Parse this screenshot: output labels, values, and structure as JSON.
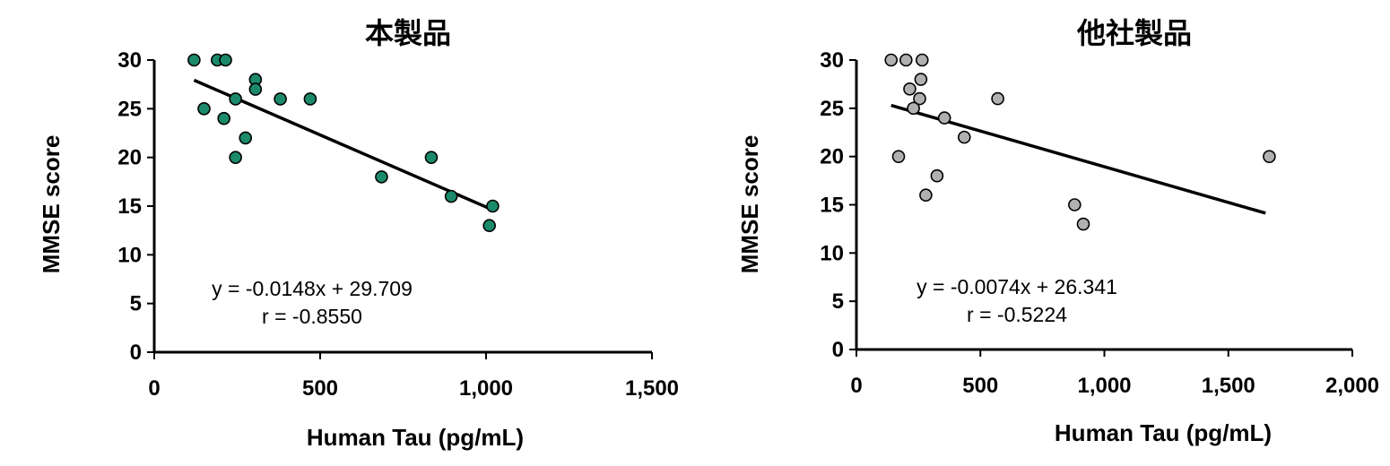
{
  "chart_data": [
    {
      "type": "scatter",
      "title": "本製品",
      "xlabel": "Human Tau (pg/mL)",
      "ylabel": "MMSE score",
      "xlim": [
        0,
        1500
      ],
      "ylim": [
        0,
        30
      ],
      "xticks": [
        0,
        500,
        1000,
        1500
      ],
      "xtick_labels": [
        "0",
        "500",
        "1,000",
        "1,500"
      ],
      "yticks": [
        0,
        5,
        10,
        15,
        20,
        25,
        30
      ],
      "ytick_labels": [
        "0",
        "5",
        "10",
        "15",
        "20",
        "25",
        "30"
      ],
      "grid": false,
      "marker_color": "#1a8a6a",
      "points": [
        {
          "x": 120,
          "y": 30
        },
        {
          "x": 190,
          "y": 30
        },
        {
          "x": 215,
          "y": 30
        },
        {
          "x": 150,
          "y": 25
        },
        {
          "x": 210,
          "y": 24
        },
        {
          "x": 245,
          "y": 26
        },
        {
          "x": 245,
          "y": 20
        },
        {
          "x": 275,
          "y": 22
        },
        {
          "x": 305,
          "y": 28
        },
        {
          "x": 305,
          "y": 27
        },
        {
          "x": 380,
          "y": 26
        },
        {
          "x": 470,
          "y": 26
        },
        {
          "x": 685,
          "y": 18
        },
        {
          "x": 835,
          "y": 20
        },
        {
          "x": 895,
          "y": 16
        },
        {
          "x": 1010,
          "y": 13
        },
        {
          "x": 1020,
          "y": 15
        }
      ],
      "trendline": {
        "slope": -0.0148,
        "intercept": 29.709,
        "x_range": [
          120,
          1020
        ]
      },
      "annotations": [
        "y = -0.0148x + 29.709",
        "r = -0.8550"
      ]
    },
    {
      "type": "scatter",
      "title": "他社製品",
      "xlabel": "Human Tau (pg/mL)",
      "ylabel": "MMSE score",
      "xlim": [
        0,
        2000
      ],
      "ylim": [
        0,
        30
      ],
      "xticks": [
        0,
        500,
        1000,
        1500,
        2000
      ],
      "xtick_labels": [
        "0",
        "500",
        "1,000",
        "1,500",
        "2,000"
      ],
      "yticks": [
        0,
        5,
        10,
        15,
        20,
        25,
        30
      ],
      "ytick_labels": [
        "0",
        "5",
        "10",
        "15",
        "20",
        "25",
        "30"
      ],
      "grid": false,
      "marker_color": "#b0b0b0",
      "points": [
        {
          "x": 140,
          "y": 30
        },
        {
          "x": 200,
          "y": 30
        },
        {
          "x": 265,
          "y": 30
        },
        {
          "x": 215,
          "y": 27
        },
        {
          "x": 260,
          "y": 28
        },
        {
          "x": 255,
          "y": 26
        },
        {
          "x": 230,
          "y": 25
        },
        {
          "x": 170,
          "y": 20
        },
        {
          "x": 355,
          "y": 24
        },
        {
          "x": 435,
          "y": 22
        },
        {
          "x": 325,
          "y": 18
        },
        {
          "x": 280,
          "y": 16
        },
        {
          "x": 570,
          "y": 26
        },
        {
          "x": 880,
          "y": 15
        },
        {
          "x": 915,
          "y": 13
        },
        {
          "x": 1665,
          "y": 20
        }
      ],
      "trendline": {
        "slope": -0.0074,
        "intercept": 26.341,
        "x_range": [
          140,
          1650
        ]
      },
      "annotations": [
        "y = -0.0074x + 26.341",
        "r = -0.5224"
      ]
    }
  ]
}
